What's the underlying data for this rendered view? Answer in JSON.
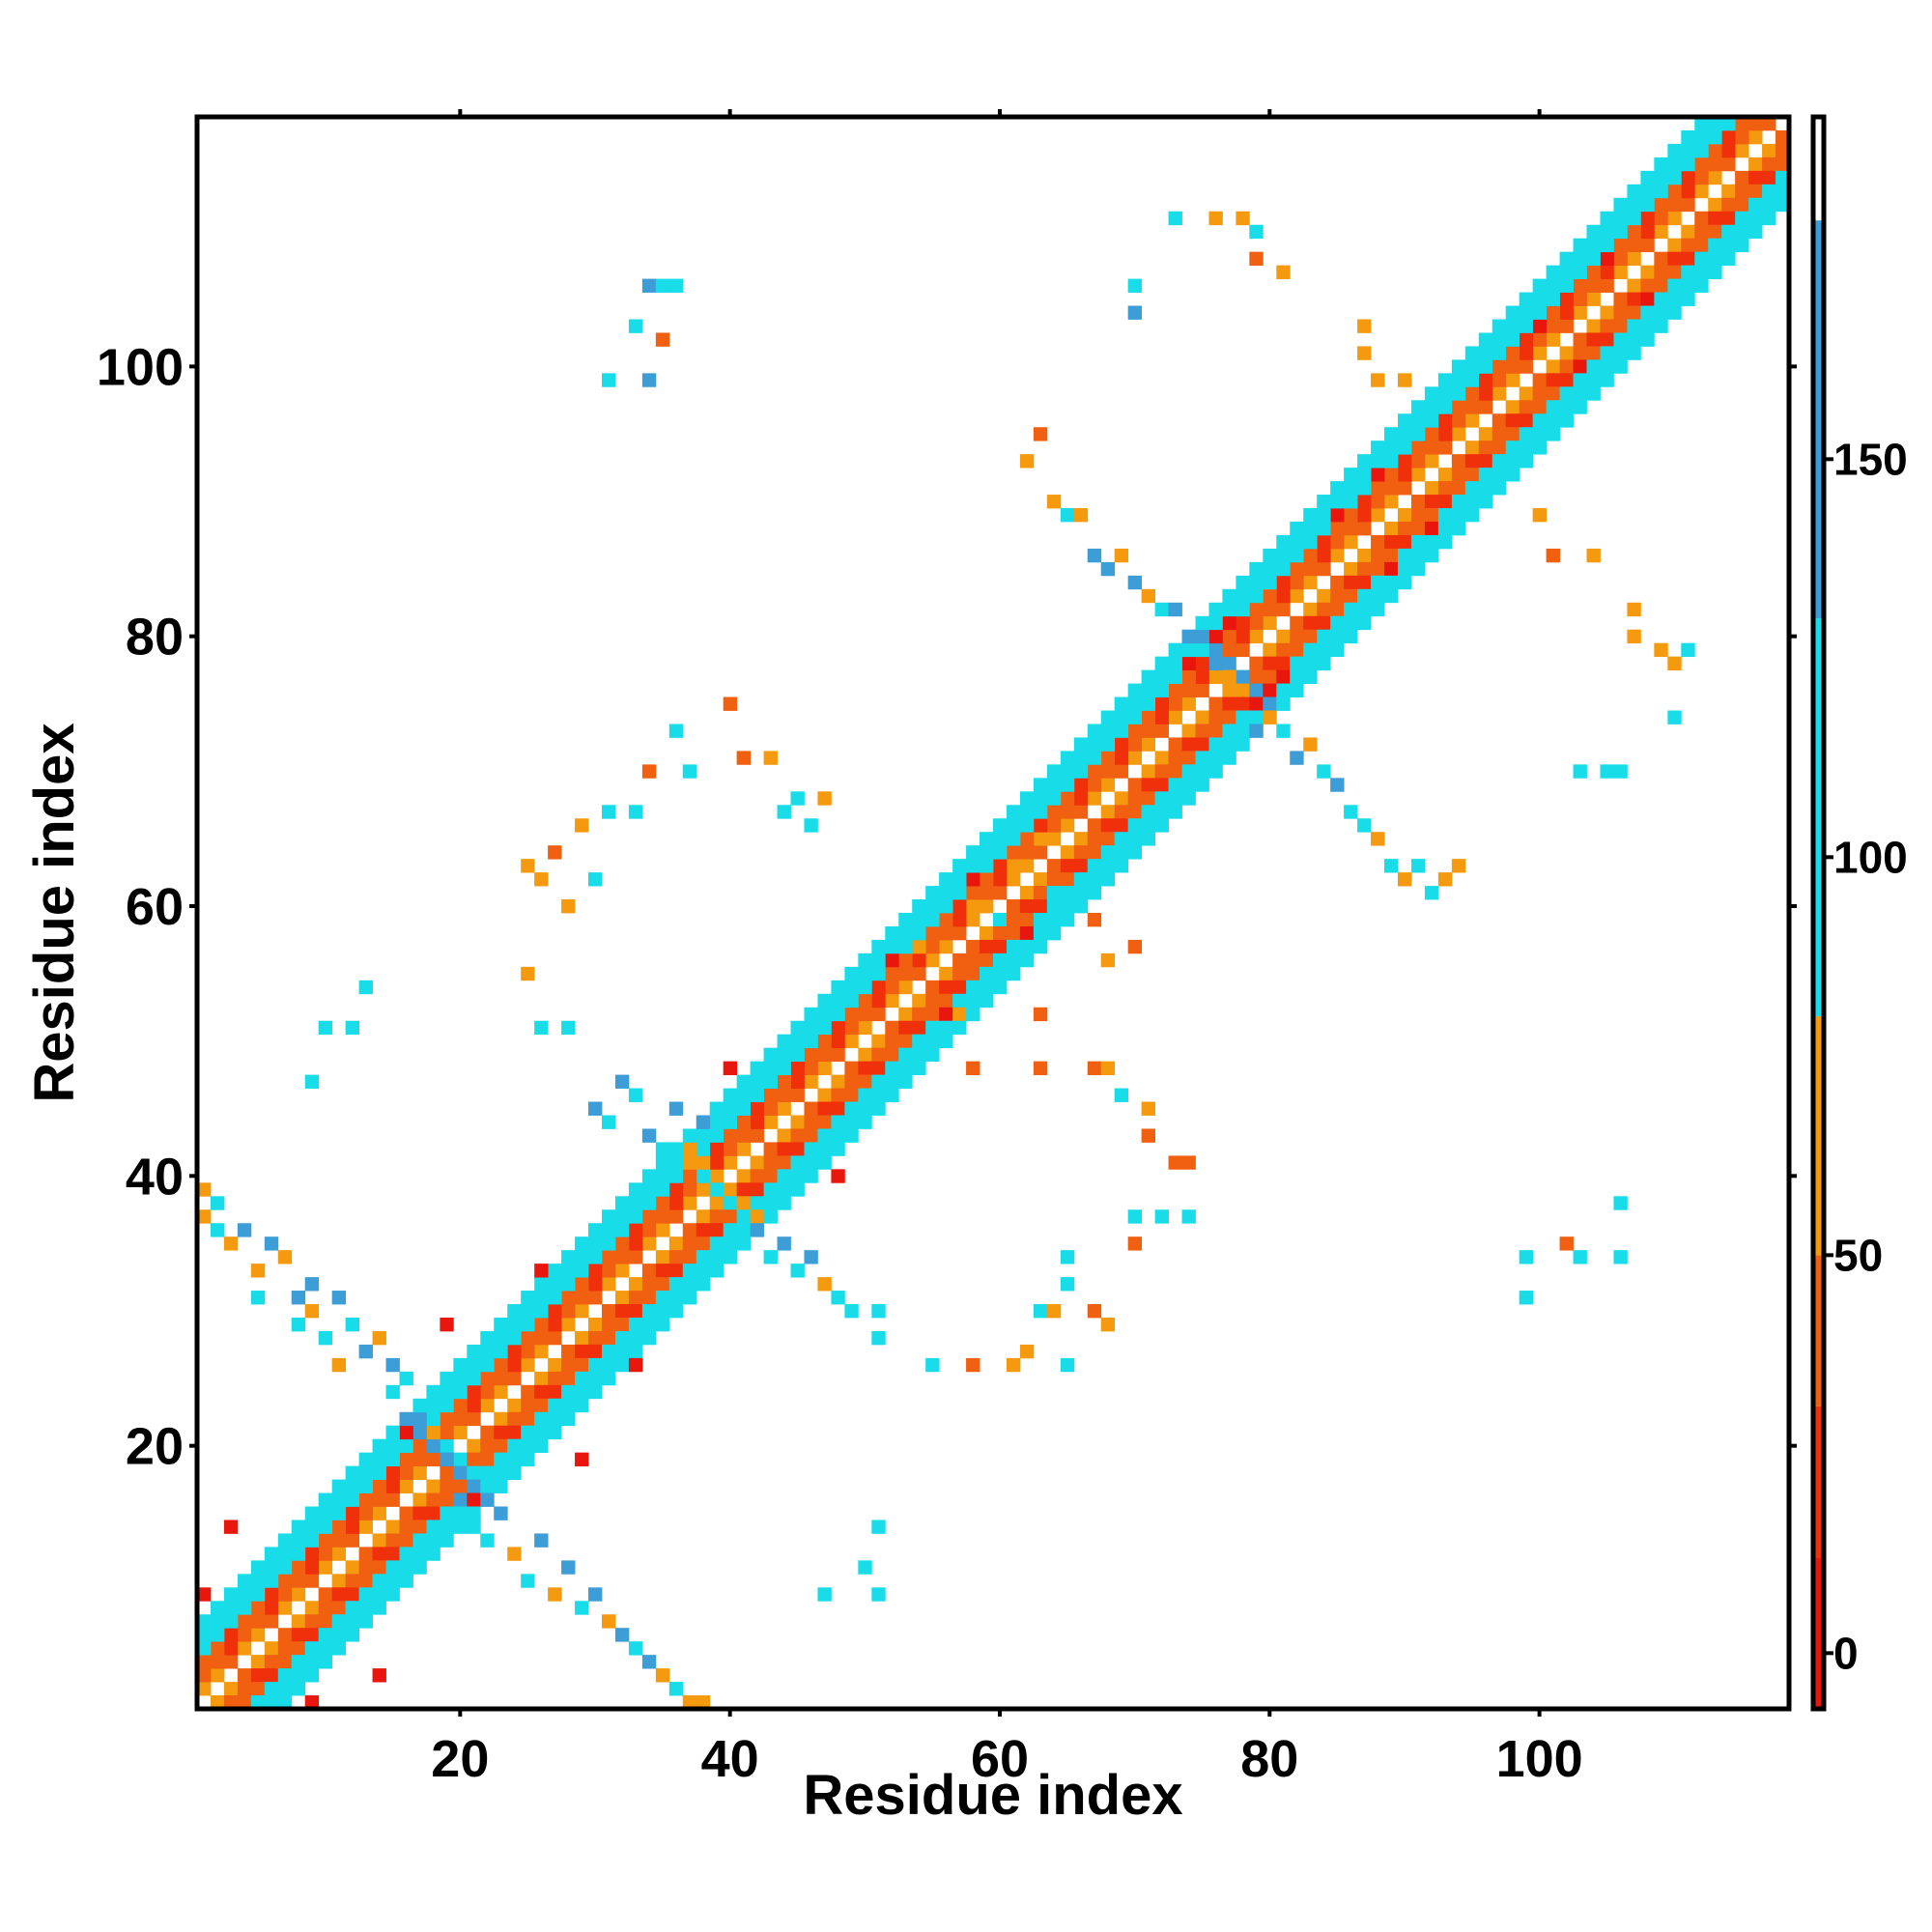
{
  "chart_data": {
    "type": "heatmap",
    "title": "",
    "xlabel": "Residue index",
    "ylabel": "Residue index",
    "xlim": [
      0.5,
      118.5
    ],
    "ylim": [
      0.5,
      118.5
    ],
    "n_residues": 118,
    "x_ticks": [
      20,
      40,
      60,
      80,
      100
    ],
    "y_ticks": [
      20,
      40,
      60,
      80,
      100
    ],
    "colorbar": {
      "range": [
        -7,
        193
      ],
      "ticks": [
        0,
        50,
        100,
        150
      ],
      "bands": [
        {
          "from": -7,
          "to": 12,
          "color": "#e8160c"
        },
        {
          "from": 12,
          "to": 31,
          "color": "#f0300a"
        },
        {
          "from": 31,
          "to": 50,
          "color": "#f06010"
        },
        {
          "from": 50,
          "to": 80,
          "color": "#f59a0e"
        },
        {
          "from": 80,
          "to": 130,
          "color": "#18dce8"
        },
        {
          "from": 130,
          "to": 180,
          "color": "#3d9dd6"
        },
        {
          "from": 180,
          "to": 193,
          "color": "#ffffff"
        }
      ]
    },
    "diagonal_bands": [
      {
        "offset": 1,
        "value": 55
      },
      {
        "offset": 2,
        "value": 40
      },
      {
        "offset": 3,
        "value": 35
      },
      {
        "offset": 4,
        "value": 100
      },
      {
        "offset": 5,
        "value": 110
      },
      {
        "offset": 6,
        "value": 95
      }
    ],
    "hot_cells": [
      [
        9,
        1
      ],
      [
        14,
        3
      ],
      [
        21,
        16
      ],
      [
        29,
        19
      ],
      [
        33,
        26
      ],
      [
        48,
        40
      ],
      [
        56,
        52
      ],
      [
        62,
        58
      ],
      [
        78,
        74
      ],
      [
        79,
        75
      ],
      [
        80,
        76
      ],
      [
        81,
        77
      ],
      [
        89,
        85
      ],
      [
        92,
        88
      ],
      [
        103,
        100
      ],
      [
        108,
        105
      ]
    ],
    "hot_value": 5,
    "crossings": [
      19,
      39,
      77
    ],
    "crossing_values": [
      140,
      100,
      70
    ],
    "contacts": [
      [
        1,
        37,
        55
      ],
      [
        1,
        39,
        75
      ],
      [
        2,
        38,
        95
      ],
      [
        2,
        36,
        110
      ],
      [
        3,
        35,
        60
      ],
      [
        4,
        36,
        140
      ],
      [
        5,
        33,
        55
      ],
      [
        5,
        31,
        100
      ],
      [
        6,
        35,
        140
      ],
      [
        7,
        34,
        70
      ],
      [
        8,
        31,
        140
      ],
      [
        8,
        29,
        95
      ],
      [
        9,
        32,
        140
      ],
      [
        9,
        30,
        70
      ],
      [
        10,
        28,
        100
      ],
      [
        11,
        31,
        140
      ],
      [
        11,
        26,
        70
      ],
      [
        12,
        29,
        95
      ],
      [
        13,
        27,
        140
      ],
      [
        14,
        28,
        70
      ],
      [
        15,
        26,
        140
      ],
      [
        15,
        24,
        95
      ],
      [
        16,
        25,
        100
      ],
      [
        17,
        22,
        140
      ],
      [
        18,
        21,
        70
      ],
      [
        20,
        16,
        140
      ],
      [
        21,
        14,
        100
      ],
      [
        22,
        13,
        95
      ],
      [
        23,
        15,
        140
      ],
      [
        24,
        12,
        70
      ],
      [
        25,
        10,
        95
      ],
      [
        26,
        13,
        140
      ],
      [
        27,
        9,
        70
      ],
      [
        28,
        11,
        140
      ],
      [
        29,
        8,
        95
      ],
      [
        30,
        9,
        140
      ],
      [
        31,
        7,
        70
      ],
      [
        32,
        6,
        140
      ],
      [
        33,
        5,
        100
      ],
      [
        34,
        4,
        140
      ],
      [
        35,
        3,
        70
      ],
      [
        36,
        2,
        95
      ],
      [
        37,
        1,
        55
      ],
      [
        38,
        1,
        70
      ],
      [
        30,
        45,
        140
      ],
      [
        31,
        44,
        95
      ],
      [
        32,
        47,
        140
      ],
      [
        33,
        46,
        95
      ],
      [
        34,
        43,
        140
      ],
      [
        35,
        42,
        100
      ],
      [
        36,
        45,
        140
      ],
      [
        37,
        41,
        70
      ],
      [
        38,
        44,
        140
      ],
      [
        39,
        43,
        100
      ],
      [
        42,
        36,
        140
      ],
      [
        43,
        34,
        95
      ],
      [
        44,
        35,
        140
      ],
      [
        45,
        33,
        100
      ],
      [
        46,
        34,
        140
      ],
      [
        47,
        32,
        70
      ],
      [
        48,
        31,
        95
      ],
      [
        49,
        30,
        100
      ],
      [
        25,
        63,
        55
      ],
      [
        26,
        62,
        70
      ],
      [
        27,
        64,
        40
      ],
      [
        28,
        60,
        60
      ],
      [
        29,
        66,
        55
      ],
      [
        30,
        62,
        100
      ],
      [
        31,
        67,
        95
      ],
      [
        33,
        67,
        95
      ],
      [
        34,
        70,
        40
      ],
      [
        36,
        73,
        100
      ],
      [
        37,
        70,
        95
      ],
      [
        40,
        75,
        40
      ],
      [
        41,
        71,
        40
      ],
      [
        43,
        71,
        55
      ],
      [
        44,
        67,
        95
      ],
      [
        45,
        68,
        100
      ],
      [
        46,
        66,
        95
      ],
      [
        47,
        68,
        55
      ],
      [
        25,
        55,
        55
      ],
      [
        26,
        51,
        95
      ],
      [
        28,
        51,
        95
      ],
      [
        10,
        51,
        95
      ],
      [
        12,
        51,
        95
      ],
      [
        13,
        54,
        100
      ],
      [
        9,
        47,
        95
      ],
      [
        62,
        93,
        70
      ],
      [
        63,
        95,
        40
      ],
      [
        64,
        90,
        55
      ],
      [
        65,
        89,
        100
      ],
      [
        66,
        89,
        70
      ],
      [
        67,
        86,
        140
      ],
      [
        68,
        85,
        140
      ],
      [
        69,
        86,
        55
      ],
      [
        70,
        84,
        140
      ],
      [
        71,
        83,
        70
      ],
      [
        72,
        82,
        100
      ],
      [
        73,
        82,
        140
      ],
      [
        74,
        80,
        140
      ],
      [
        75,
        79,
        100
      ],
      [
        76,
        78,
        140
      ],
      [
        78,
        74,
        100
      ],
      [
        79,
        73,
        140
      ],
      [
        80,
        74,
        70
      ],
      [
        81,
        73,
        95
      ],
      [
        82,
        71,
        140
      ],
      [
        83,
        72,
        70
      ],
      [
        84,
        70,
        95
      ],
      [
        85,
        69,
        140
      ],
      [
        86,
        67,
        100
      ],
      [
        87,
        66,
        95
      ],
      [
        88,
        65,
        60
      ],
      [
        89,
        63,
        100
      ],
      [
        90,
        62,
        55
      ],
      [
        91,
        63,
        95
      ],
      [
        92,
        61,
        100
      ],
      [
        93,
        62,
        55
      ],
      [
        94,
        63,
        60
      ],
      [
        70,
        106,
        100
      ],
      [
        70,
        104,
        140
      ],
      [
        73,
        111,
        95
      ],
      [
        76,
        111,
        60
      ],
      [
        78,
        111,
        55
      ],
      [
        79,
        110,
        95
      ],
      [
        79,
        108,
        40
      ],
      [
        81,
        107,
        55
      ],
      [
        87,
        103,
        55
      ],
      [
        87,
        101,
        55
      ],
      [
        88,
        99,
        55
      ],
      [
        90,
        99,
        55
      ],
      [
        100,
        89,
        55
      ],
      [
        101,
        86,
        40
      ],
      [
        104,
        86,
        60
      ],
      [
        107,
        82,
        55
      ],
      [
        107,
        80,
        55
      ],
      [
        109,
        79,
        55
      ],
      [
        110,
        78,
        55
      ],
      [
        111,
        79,
        95
      ],
      [
        110,
        74,
        95
      ],
      [
        103,
        70,
        95
      ],
      [
        105,
        70,
        95
      ],
      [
        106,
        70,
        95
      ],
      [
        31,
        99,
        95
      ],
      [
        33,
        103,
        95
      ],
      [
        34,
        106,
        140
      ],
      [
        35,
        106,
        95
      ],
      [
        36,
        106,
        95
      ],
      [
        34,
        99,
        140
      ],
      [
        35,
        102,
        40
      ],
      [
        50,
        11,
        95
      ],
      [
        51,
        14,
        95
      ],
      [
        47,
        9,
        95
      ],
      [
        51,
        9,
        95
      ],
      [
        51,
        30,
        95
      ],
      [
        51,
        28,
        95
      ],
      [
        55,
        26,
        95
      ],
      [
        58,
        26,
        40
      ],
      [
        61,
        26,
        60
      ],
      [
        62,
        27,
        70
      ],
      [
        63,
        30,
        95
      ],
      [
        64,
        30,
        70
      ],
      [
        65,
        26,
        95
      ],
      [
        67,
        30,
        40
      ],
      [
        68,
        29,
        60
      ],
      [
        58,
        48,
        40
      ],
      [
        63,
        52,
        40
      ],
      [
        63,
        48,
        40
      ],
      [
        67,
        48,
        40
      ],
      [
        68,
        48,
        55
      ],
      [
        69,
        46,
        95
      ],
      [
        71,
        45,
        55
      ],
      [
        71,
        43,
        40
      ],
      [
        73,
        41,
        40
      ],
      [
        74,
        41,
        40
      ],
      [
        72,
        37,
        95
      ],
      [
        74,
        37,
        95
      ],
      [
        70,
        35,
        40
      ],
      [
        70,
        37,
        95
      ],
      [
        65,
        34,
        95
      ],
      [
        65,
        32,
        95
      ],
      [
        99,
        34,
        95
      ],
      [
        99,
        31,
        100
      ],
      [
        102,
        35,
        40
      ],
      [
        103,
        34,
        95
      ],
      [
        106,
        34,
        95
      ],
      [
        106,
        38,
        95
      ],
      [
        53,
        55,
        40
      ],
      [
        52,
        58,
        95
      ],
      [
        54,
        57,
        60
      ],
      [
        57,
        56,
        40
      ],
      [
        58,
        60,
        70
      ],
      [
        59,
        62,
        40
      ],
      [
        60,
        59,
        95
      ],
      [
        61,
        63,
        55
      ],
      [
        62,
        64,
        40
      ],
      [
        63,
        65,
        55
      ],
      [
        64,
        61,
        95
      ],
      [
        67,
        59,
        40
      ],
      [
        70,
        57,
        40
      ],
      [
        68,
        56,
        55
      ],
      [
        57,
        52,
        55
      ]
    ]
  }
}
